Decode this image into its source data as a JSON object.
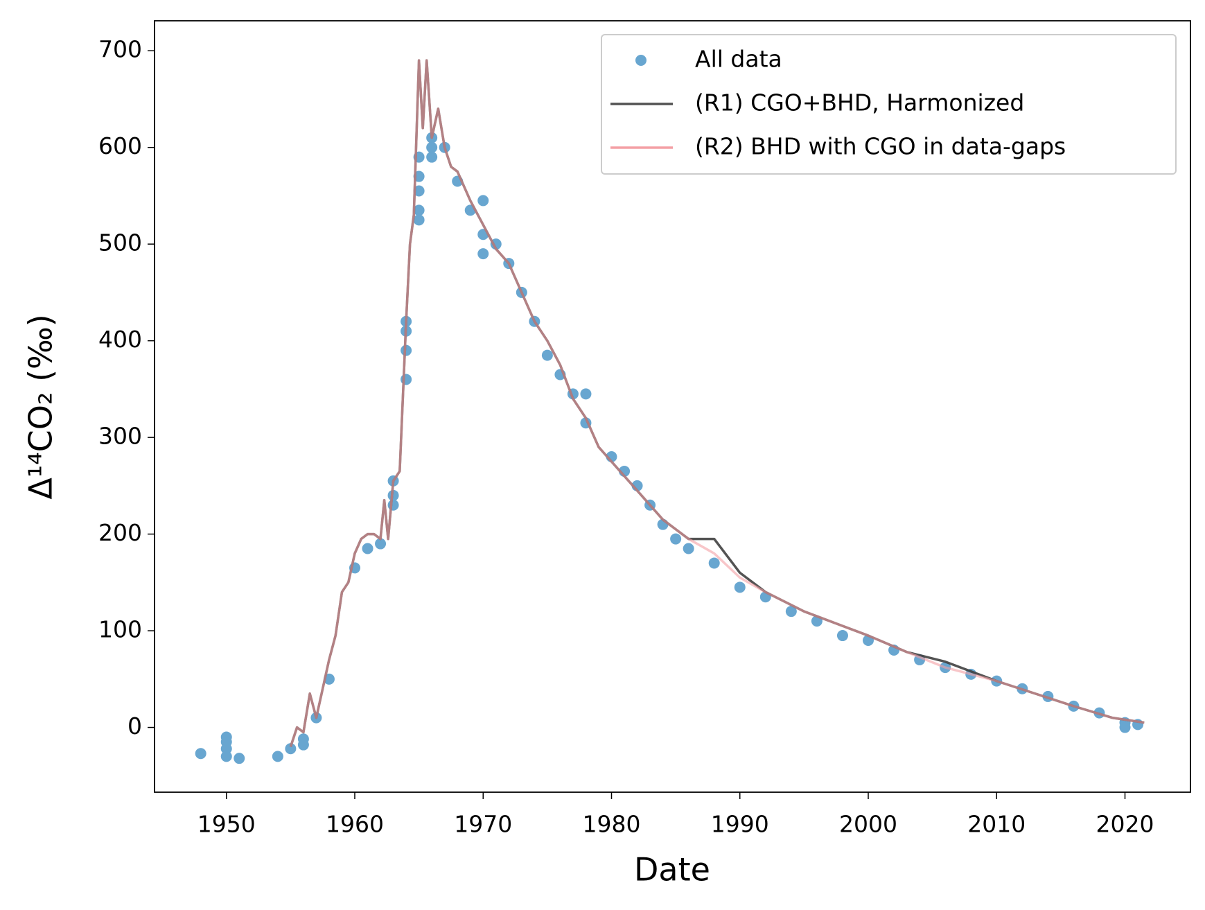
{
  "chart_data": {
    "type": "scatter+line",
    "xlabel": "Date",
    "ylabel": "Δ¹⁴CO₂ (‰)",
    "xlim": [
      1944.4,
      2025.1
    ],
    "ylim": [
      -67,
      731
    ],
    "xticks": [
      1950,
      1960,
      1970,
      1980,
      1990,
      2000,
      2010,
      2020
    ],
    "yticks": [
      0,
      100,
      200,
      300,
      400,
      500,
      600,
      700
    ],
    "legend": "upper right",
    "grid": false,
    "series": [
      {
        "name": "All data",
        "type": "scatter",
        "color": "#68a6d0",
        "x": [
          1948,
          1950,
          1950,
          1950,
          1950,
          1951,
          1954,
          1955,
          1956,
          1956,
          1957,
          1958,
          1960,
          1961,
          1962,
          1963,
          1963,
          1963,
          1964,
          1964,
          1964,
          1964,
          1965,
          1965,
          1965,
          1965,
          1965,
          1966,
          1966,
          1966,
          1967,
          1968,
          1969,
          1970,
          1970,
          1970,
          1971,
          1972,
          1973,
          1974,
          1975,
          1976,
          1977,
          1978,
          1978,
          1980,
          1981,
          1982,
          1983,
          1984,
          1985,
          1986,
          1988,
          1990,
          1992,
          1994,
          1996,
          1998,
          2000,
          2002,
          2004,
          2006,
          2008,
          2010,
          2012,
          2014,
          2016,
          2018,
          2020,
          2020,
          2021
        ],
        "values": [
          -27,
          -10,
          -15,
          -22,
          -30,
          -32,
          -30,
          -22,
          -12,
          -18,
          10,
          50,
          165,
          185,
          190,
          230,
          240,
          255,
          360,
          390,
          410,
          420,
          525,
          535,
          555,
          570,
          590,
          590,
          600,
          610,
          600,
          565,
          535,
          490,
          510,
          545,
          500,
          480,
          450,
          420,
          385,
          365,
          345,
          345,
          315,
          280,
          265,
          250,
          230,
          210,
          195,
          185,
          170,
          145,
          135,
          120,
          110,
          95,
          90,
          80,
          70,
          62,
          55,
          48,
          40,
          32,
          22,
          15,
          5,
          0,
          3
        ]
      },
      {
        "name": "(R1) CGO+BHD, Harmonized",
        "type": "line",
        "color": "#404040",
        "x": [
          1955,
          1955.5,
          1956,
          1956.5,
          1957,
          1957.5,
          1958,
          1958.5,
          1959,
          1959.5,
          1960,
          1960.5,
          1961,
          1961.5,
          1962,
          1962.3,
          1962.6,
          1963,
          1963.5,
          1964,
          1964.3,
          1964.6,
          1965,
          1965.3,
          1965.6,
          1966,
          1966.5,
          1967,
          1967.5,
          1968,
          1969,
          1970,
          1971,
          1972,
          1973,
          1974,
          1975,
          1976,
          1977,
          1978,
          1979,
          1980,
          1982,
          1984,
          1986,
          1988,
          1990,
          1992,
          1995,
          1998,
          2000,
          2003,
          2006,
          2010,
          2013,
          2016,
          2019,
          2021.5
        ],
        "values": [
          -20,
          0,
          -5,
          35,
          10,
          40,
          70,
          95,
          140,
          150,
          180,
          195,
          200,
          200,
          195,
          235,
          195,
          255,
          265,
          420,
          500,
          530,
          690,
          620,
          690,
          610,
          640,
          600,
          580,
          575,
          545,
          520,
          495,
          480,
          450,
          420,
          400,
          375,
          340,
          320,
          290,
          275,
          245,
          215,
          195,
          195,
          160,
          140,
          120,
          105,
          95,
          78,
          68,
          48,
          35,
          22,
          10,
          5
        ]
      },
      {
        "name": "(R2) BHD with CGO in data-gaps",
        "type": "line",
        "color": "#f4a0a5",
        "x": [
          1955,
          1955.5,
          1956,
          1956.5,
          1957,
          1957.5,
          1958,
          1958.5,
          1959,
          1959.5,
          1960,
          1960.5,
          1961,
          1961.5,
          1962,
          1962.3,
          1962.6,
          1963,
          1963.5,
          1964,
          1964.3,
          1964.6,
          1965,
          1965.3,
          1965.6,
          1966,
          1966.5,
          1967,
          1967.5,
          1968,
          1969,
          1970,
          1971,
          1972,
          1973,
          1974,
          1975,
          1976,
          1977,
          1978,
          1979,
          1980,
          1982,
          1984,
          1986,
          1988,
          1990,
          1992,
          1995,
          1998,
          2000,
          2003,
          2006,
          2010,
          2013,
          2016,
          2019,
          2021.5
        ],
        "values": [
          -20,
          0,
          -5,
          35,
          10,
          40,
          70,
          95,
          140,
          150,
          180,
          195,
          200,
          200,
          195,
          235,
          195,
          255,
          265,
          420,
          500,
          530,
          690,
          620,
          690,
          610,
          640,
          600,
          580,
          575,
          545,
          520,
          495,
          480,
          450,
          420,
          400,
          375,
          340,
          320,
          290,
          275,
          245,
          215,
          195,
          180,
          155,
          140,
          120,
          105,
          95,
          78,
          62,
          48,
          35,
          22,
          10,
          5
        ]
      }
    ]
  }
}
